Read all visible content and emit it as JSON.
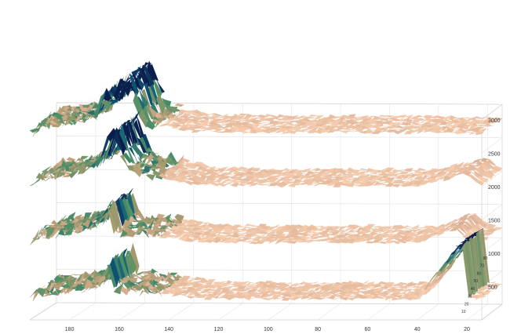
{
  "chart_data": {
    "type": "surface-3d",
    "title": "",
    "xlabel": "",
    "ylabel": "",
    "zlabel": "",
    "grid": true,
    "legend": "none",
    "x_ticks": [
      "180",
      "160",
      "140",
      "120",
      "100",
      "80",
      "60",
      "40",
      "20"
    ],
    "y_ticks": [
      "10",
      "20",
      "30",
      "40",
      "50",
      "60",
      "70",
      "80"
    ],
    "z_ticks": [
      "500",
      "1000",
      "1500",
      "2000",
      "2500",
      "3000"
    ],
    "xlim": [
      196,
      14
    ],
    "zlim": [
      0,
      3000
    ],
    "colormap": [
      "#0b1f4e",
      "#0f5a78",
      "#4d8f66",
      "#a89b6f",
      "#d9ad93",
      "#f6cdae"
    ],
    "series": [
      {
        "baseline": 300,
        "values_profile": [
          {
            "x": 195,
            "z": 380
          },
          {
            "x": 180,
            "z": 440
          },
          {
            "x": 168,
            "z": 520
          },
          {
            "x": 164,
            "z": 900
          },
          {
            "x": 162,
            "z": 450
          },
          {
            "x": 150,
            "z": 430
          },
          {
            "x": 130,
            "z": 330
          },
          {
            "x": 100,
            "z": 310
          },
          {
            "x": 70,
            "z": 320
          },
          {
            "x": 40,
            "z": 310
          },
          {
            "x": 22,
            "z": 1200
          },
          {
            "x": 20,
            "z": 340
          },
          {
            "x": 15,
            "z": 320
          }
        ]
      },
      {
        "baseline": 1150,
        "values_profile": [
          {
            "x": 195,
            "z": 1250
          },
          {
            "x": 180,
            "z": 1320
          },
          {
            "x": 170,
            "z": 1420
          },
          {
            "x": 165,
            "z": 1700
          },
          {
            "x": 162,
            "z": 1300
          },
          {
            "x": 150,
            "z": 1280
          },
          {
            "x": 130,
            "z": 1180
          },
          {
            "x": 100,
            "z": 1160
          },
          {
            "x": 70,
            "z": 1170
          },
          {
            "x": 40,
            "z": 1160
          },
          {
            "x": 25,
            "z": 1380
          },
          {
            "x": 20,
            "z": 1190
          },
          {
            "x": 15,
            "z": 1170
          }
        ]
      },
      {
        "baseline": 2000,
        "values_profile": [
          {
            "x": 195,
            "z": 2100
          },
          {
            "x": 180,
            "z": 2180
          },
          {
            "x": 168,
            "z": 2350
          },
          {
            "x": 163,
            "z": 2900
          },
          {
            "x": 158,
            "z": 2300
          },
          {
            "x": 150,
            "z": 2200
          },
          {
            "x": 130,
            "z": 2030
          },
          {
            "x": 100,
            "z": 2010
          },
          {
            "x": 70,
            "z": 2020
          },
          {
            "x": 40,
            "z": 2010
          },
          {
            "x": 20,
            "z": 2200
          },
          {
            "x": 15,
            "z": 2030
          }
        ]
      },
      {
        "baseline": 2800,
        "values_profile": [
          {
            "x": 195,
            "z": 2900
          },
          {
            "x": 180,
            "z": 2960
          },
          {
            "x": 170,
            "z": 3050
          },
          {
            "x": 166,
            "z": 3500
          },
          {
            "x": 164,
            "z": 3100
          },
          {
            "x": 158,
            "z": 3700
          },
          {
            "x": 150,
            "z": 2950
          },
          {
            "x": 130,
            "z": 2830
          },
          {
            "x": 100,
            "z": 2810
          },
          {
            "x": 70,
            "z": 2820
          },
          {
            "x": 40,
            "z": 2810
          },
          {
            "x": 15,
            "z": 2800
          }
        ]
      }
    ]
  }
}
